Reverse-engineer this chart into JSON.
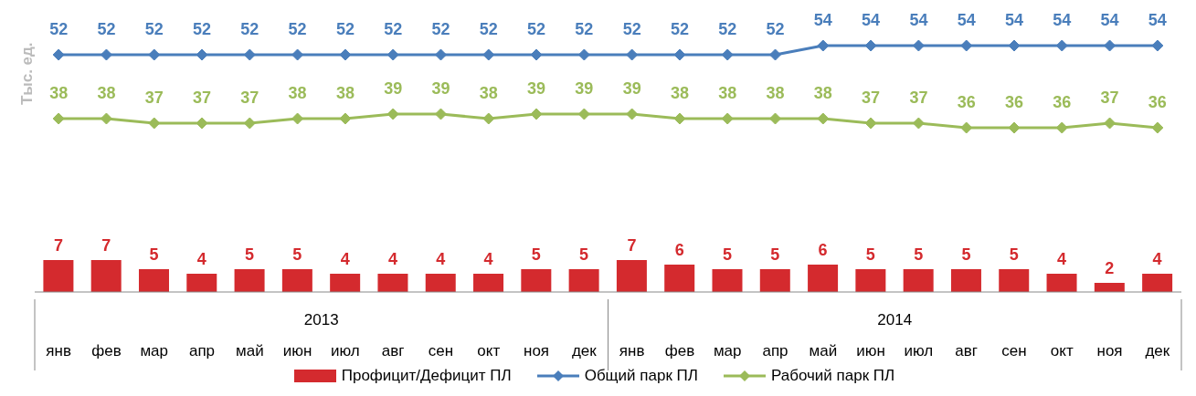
{
  "chart_data": {
    "type": "bar",
    "ylabel": "Тыс. ед.",
    "categories": [
      "янв",
      "фев",
      "мар",
      "апр",
      "май",
      "июн",
      "июл",
      "авг",
      "сен",
      "окт",
      "ноя",
      "дек",
      "янв",
      "фев",
      "мар",
      "апр",
      "май",
      "июн",
      "июл",
      "авг",
      "сен",
      "окт",
      "ноя",
      "дек"
    ],
    "annotations": [
      "2013",
      "2014"
    ],
    "series": [
      {
        "name": "Профицит/Дефицит ПЛ",
        "color": "#d42a2e",
        "values": [
          7,
          7,
          5,
          4,
          5,
          5,
          4,
          4,
          4,
          4,
          5,
          5,
          7,
          6,
          5,
          5,
          6,
          5,
          5,
          5,
          5,
          4,
          2,
          4
        ]
      },
      {
        "name": "Общий парк ПЛ",
        "type": "line",
        "color": "#4a7ebb",
        "values": [
          52,
          52,
          52,
          52,
          52,
          52,
          52,
          52,
          52,
          52,
          52,
          52,
          52,
          52,
          52,
          52,
          54,
          54,
          54,
          54,
          54,
          54,
          54,
          54
        ]
      },
      {
        "name": "Рабочий парк ПЛ",
        "type": "line",
        "color": "#9bbb59",
        "values": [
          38,
          38,
          37,
          37,
          37,
          38,
          38,
          39,
          39,
          38,
          39,
          39,
          39,
          38,
          38,
          38,
          38,
          37,
          37,
          36,
          36,
          36,
          37,
          36
        ]
      }
    ],
    "data_labels": true,
    "marker": "diamond",
    "legend": "bottom"
  }
}
